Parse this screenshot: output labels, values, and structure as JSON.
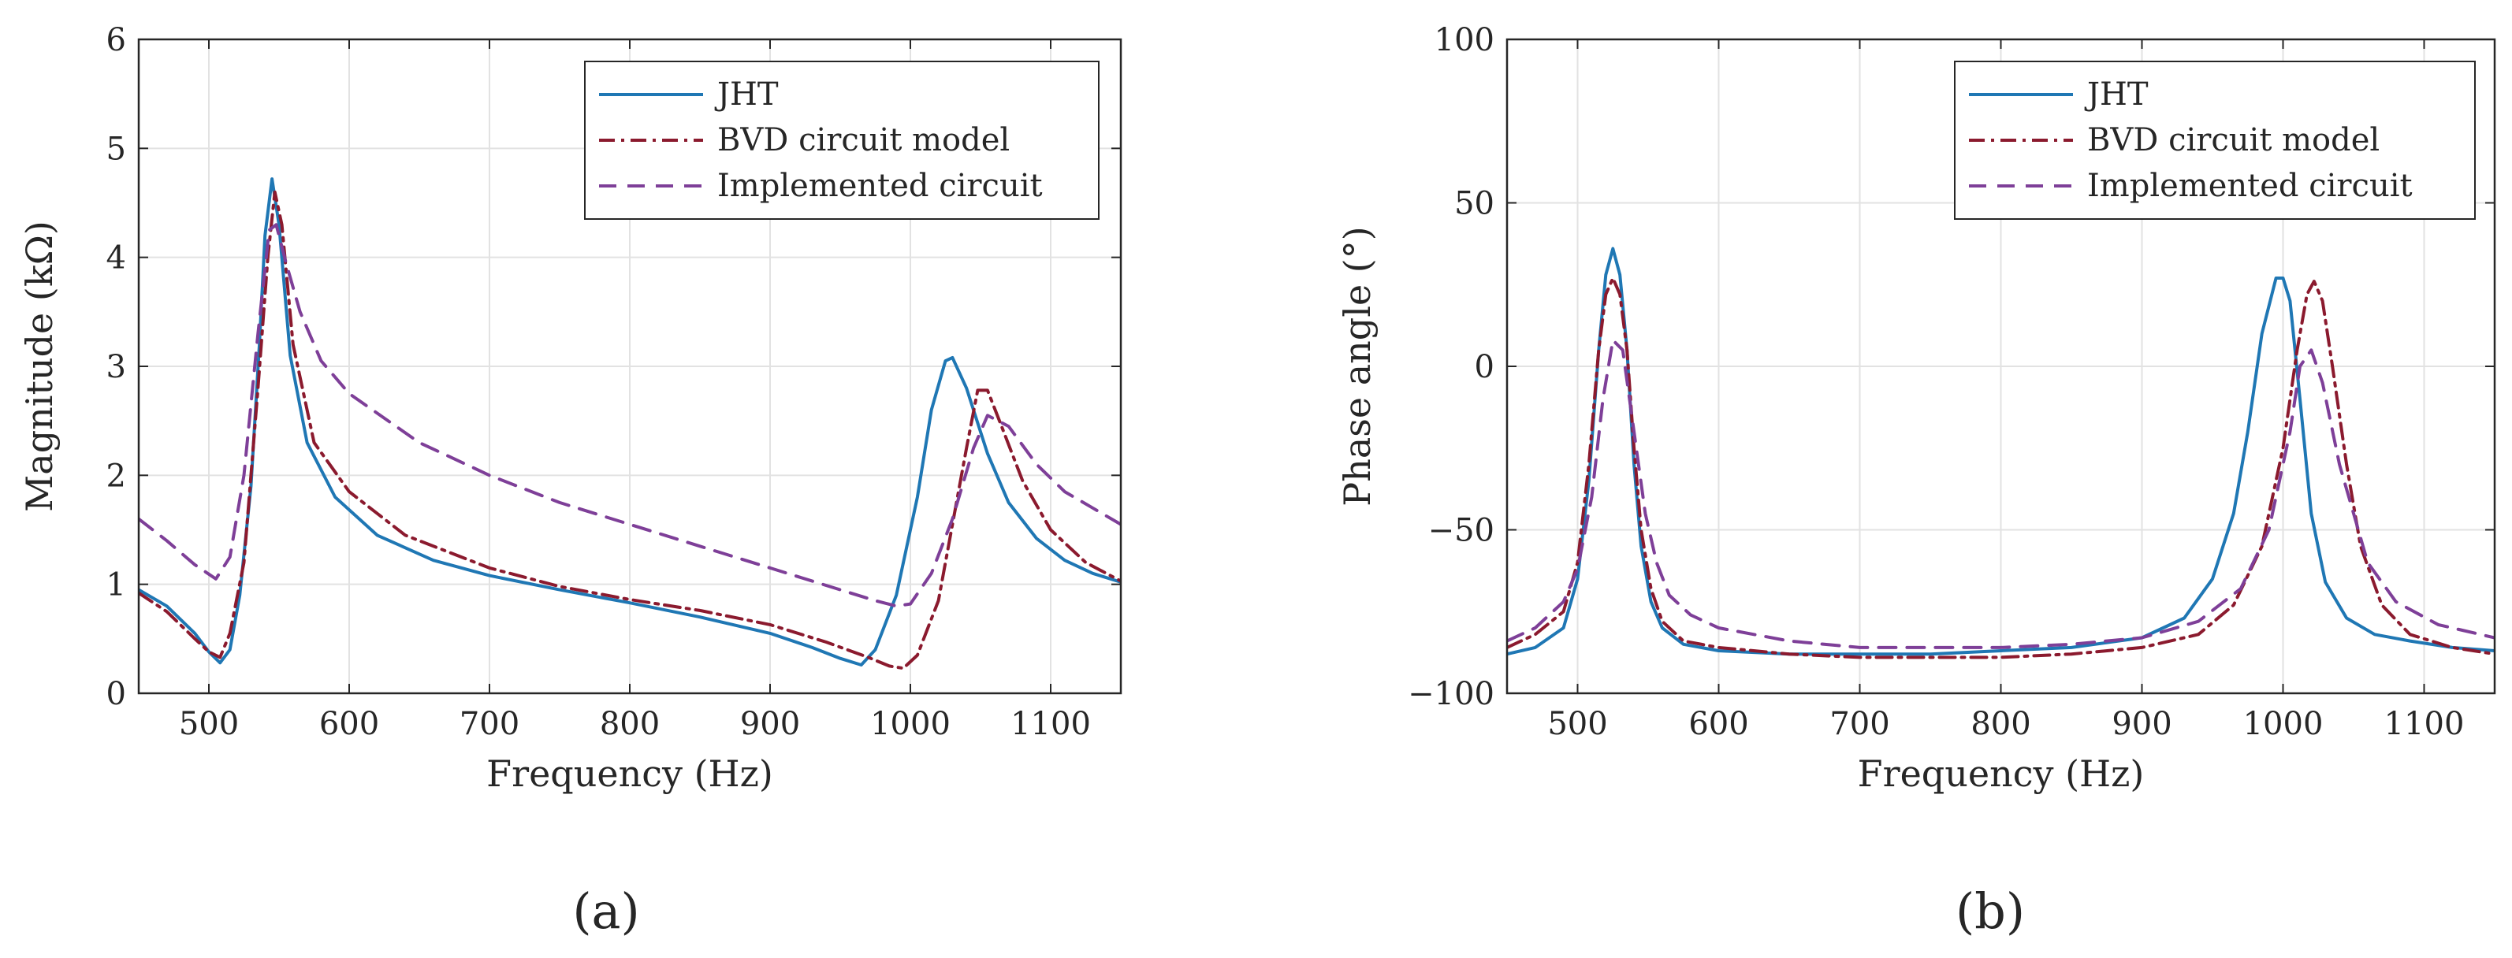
{
  "figure": {
    "panel_labels": [
      "(a)",
      "(b)"
    ]
  },
  "legend_entries": [
    {
      "label": "JHT",
      "color": "#1f77b4",
      "dash": "solid"
    },
    {
      "label": "BVD circuit model",
      "color": "#8b1a2e",
      "dash": "dashdot"
    },
    {
      "label": "Implemented circuit",
      "color": "#7e3f98",
      "dash": "dashed"
    }
  ],
  "chart_data": [
    {
      "type": "line",
      "panel": "(a)",
      "title": "",
      "xlabel": "Frequency (Hz)",
      "ylabel": "Magnitude (kΩ)",
      "xlim": [
        450,
        1150
      ],
      "ylim": [
        0,
        6
      ],
      "xticks": [
        500,
        600,
        700,
        800,
        900,
        1000,
        1100
      ],
      "yticks": [
        0,
        1,
        2,
        3,
        4,
        5,
        6
      ],
      "grid": true,
      "legend_position": "top-right",
      "series": [
        {
          "name": "JHT",
          "color": "#1f77b4",
          "dash": "solid",
          "x": [
            450,
            470,
            490,
            500,
            508,
            515,
            522,
            530,
            536,
            540,
            545,
            550,
            558,
            570,
            590,
            620,
            660,
            700,
            750,
            800,
            850,
            900,
            930,
            950,
            965,
            975,
            990,
            1005,
            1015,
            1025,
            1030,
            1040,
            1055,
            1070,
            1090,
            1110,
            1130,
            1150
          ],
          "y": [
            0.95,
            0.8,
            0.55,
            0.38,
            0.28,
            0.4,
            0.9,
            1.9,
            3.2,
            4.2,
            4.72,
            4.3,
            3.1,
            2.3,
            1.8,
            1.45,
            1.22,
            1.08,
            0.95,
            0.83,
            0.7,
            0.55,
            0.42,
            0.32,
            0.26,
            0.4,
            0.9,
            1.8,
            2.6,
            3.05,
            3.08,
            2.8,
            2.2,
            1.75,
            1.42,
            1.22,
            1.1,
            1.02
          ]
        },
        {
          "name": "BVD circuit model",
          "color": "#8b1a2e",
          "dash": "dashdot",
          "x": [
            450,
            470,
            490,
            500,
            508,
            515,
            525,
            535,
            542,
            547,
            552,
            560,
            575,
            600,
            640,
            700,
            750,
            800,
            850,
            900,
            940,
            970,
            985,
            995,
            1005,
            1020,
            1030,
            1040,
            1048,
            1055,
            1065,
            1080,
            1100,
            1125,
            1150
          ],
          "y": [
            0.92,
            0.75,
            0.5,
            0.38,
            0.33,
            0.55,
            1.2,
            2.8,
            4.0,
            4.6,
            4.3,
            3.2,
            2.3,
            1.85,
            1.45,
            1.15,
            0.98,
            0.86,
            0.76,
            0.63,
            0.47,
            0.33,
            0.25,
            0.23,
            0.35,
            0.85,
            1.55,
            2.25,
            2.78,
            2.78,
            2.45,
            1.95,
            1.5,
            1.2,
            1.03
          ]
        },
        {
          "name": "Implemented circuit",
          "color": "#7e3f98",
          "dash": "dashed",
          "x": [
            450,
            470,
            490,
            505,
            515,
            525,
            535,
            543,
            548,
            555,
            565,
            580,
            600,
            650,
            700,
            750,
            800,
            850,
            900,
            950,
            975,
            990,
            1000,
            1015,
            1030,
            1045,
            1055,
            1070,
            1090,
            1110,
            1130,
            1150
          ],
          "y": [
            1.6,
            1.4,
            1.18,
            1.05,
            1.25,
            2.0,
            3.3,
            4.25,
            4.3,
            3.95,
            3.5,
            3.05,
            2.75,
            2.3,
            2.0,
            1.75,
            1.55,
            1.35,
            1.15,
            0.95,
            0.85,
            0.8,
            0.82,
            1.1,
            1.6,
            2.25,
            2.55,
            2.45,
            2.1,
            1.85,
            1.7,
            1.55
          ]
        }
      ]
    },
    {
      "type": "line",
      "panel": "(b)",
      "title": "",
      "xlabel": "Frequency (Hz)",
      "ylabel": "Phase angle (°)",
      "xlim": [
        450,
        1150
      ],
      "ylim": [
        -100,
        100
      ],
      "xticks": [
        500,
        600,
        700,
        800,
        900,
        1000,
        1100
      ],
      "yticks": [
        -100,
        -50,
        0,
        50,
        100
      ],
      "grid": true,
      "legend_position": "top-right",
      "series": [
        {
          "name": "JHT",
          "color": "#1f77b4",
          "dash": "solid",
          "x": [
            450,
            470,
            490,
            500,
            508,
            515,
            520,
            525,
            530,
            535,
            540,
            545,
            552,
            560,
            575,
            600,
            650,
            700,
            750,
            800,
            850,
            900,
            930,
            950,
            965,
            975,
            985,
            995,
            1000,
            1005,
            1012,
            1020,
            1030,
            1045,
            1065,
            1090,
            1120,
            1150
          ],
          "y": [
            -88,
            -86,
            -80,
            -65,
            -35,
            5,
            28,
            36,
            28,
            5,
            -30,
            -55,
            -72,
            -80,
            -85,
            -87,
            -88,
            -88,
            -88,
            -87,
            -86,
            -83,
            -77,
            -65,
            -45,
            -20,
            10,
            27,
            27,
            20,
            -10,
            -45,
            -66,
            -77,
            -82,
            -84,
            -86,
            -87
          ]
        },
        {
          "name": "BVD circuit model",
          "color": "#8b1a2e",
          "dash": "dashdot",
          "x": [
            450,
            470,
            490,
            500,
            508,
            515,
            520,
            525,
            530,
            535,
            540,
            545,
            552,
            560,
            575,
            600,
            650,
            700,
            750,
            800,
            850,
            900,
            940,
            965,
            985,
            1000,
            1010,
            1017,
            1022,
            1028,
            1035,
            1045,
            1055,
            1070,
            1090,
            1120,
            1150
          ],
          "y": [
            -86,
            -82,
            -75,
            -60,
            -30,
            5,
            22,
            27,
            22,
            5,
            -25,
            -50,
            -68,
            -78,
            -84,
            -86,
            -88,
            -89,
            -89,
            -89,
            -88,
            -86,
            -82,
            -73,
            -55,
            -25,
            5,
            22,
            26,
            20,
            0,
            -30,
            -55,
            -73,
            -82,
            -86,
            -88
          ]
        },
        {
          "name": "Implemented circuit",
          "color": "#7e3f98",
          "dash": "dashed",
          "x": [
            450,
            470,
            490,
            500,
            510,
            518,
            525,
            532,
            540,
            548,
            556,
            565,
            580,
            600,
            650,
            700,
            750,
            800,
            850,
            900,
            940,
            970,
            990,
            1005,
            1012,
            1020,
            1028,
            1040,
            1060,
            1080,
            1110,
            1150
          ],
          "y": [
            -84,
            -80,
            -72,
            -62,
            -40,
            -10,
            8,
            5,
            -20,
            -45,
            -60,
            -70,
            -76,
            -80,
            -84,
            -86,
            -86,
            -86,
            -85,
            -83,
            -78,
            -68,
            -50,
            -20,
            0,
            5,
            -5,
            -30,
            -60,
            -72,
            -79,
            -83
          ]
        }
      ]
    }
  ]
}
